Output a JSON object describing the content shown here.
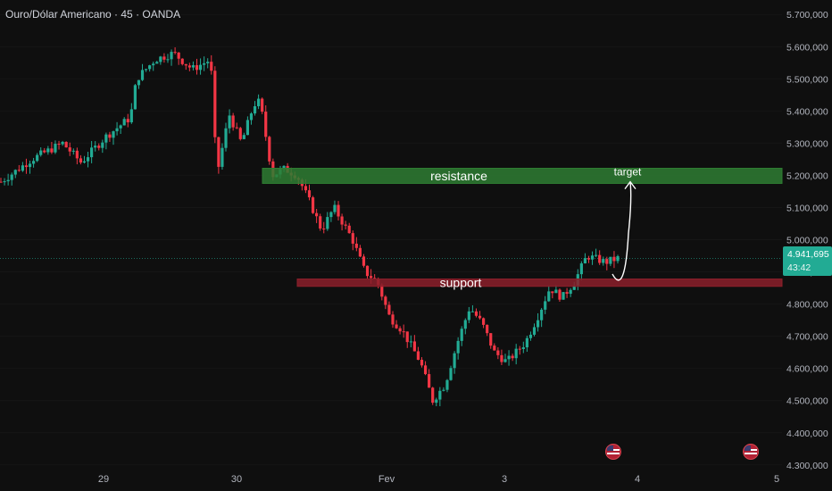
{
  "header": {
    "title": "Ouro/Dólar Americano · 45 · OANDA"
  },
  "last_price": {
    "value": "4.941,695",
    "countdown": "43:42"
  },
  "colors": {
    "background": "#0f0f0f",
    "up": "#22ab94",
    "down": "#f23645",
    "resistance_zone": "#2e7d32",
    "support_zone": "#8b1f2a",
    "annotation": "#ffffff"
  },
  "events": [
    {
      "icon": "us-flag-icon"
    },
    {
      "icon": "us-flag-icon"
    }
  ],
  "chart_data": {
    "type": "candlestick",
    "xlabel": "",
    "ylabel": "",
    "x_ticks": [
      "29",
      "30",
      "Fev",
      "3",
      "4",
      "5"
    ],
    "y_ticks": [
      "5.700,000",
      "5.600,000",
      "5.500,000",
      "5.400,000",
      "5.300,000",
      "5.200,000",
      "5.100,000",
      "5.000,000",
      "4.900,000",
      "4.800,000",
      "4.700,000",
      "4.600,000",
      "4.500,000",
      "4.400,000",
      "4.300,000"
    ],
    "ylim": [
      4280,
      5745
    ],
    "close_path": [
      [
        0,
        5180
      ],
      [
        5,
        5250
      ],
      [
        10,
        5300
      ],
      [
        13,
        5240
      ],
      [
        17,
        5320
      ],
      [
        21,
        5380
      ],
      [
        22,
        5500
      ],
      [
        25,
        5560
      ],
      [
        28,
        5580
      ],
      [
        31,
        5530
      ],
      [
        34,
        5560
      ],
      [
        35,
        5200
      ],
      [
        37,
        5390
      ],
      [
        39,
        5300
      ],
      [
        41,
        5420
      ],
      [
        42,
        5430
      ],
      [
        44,
        5200
      ],
      [
        46,
        5220
      ],
      [
        48,
        5200
      ],
      [
        50,
        5120
      ],
      [
        52,
        5030
      ],
      [
        54,
        5100
      ],
      [
        57,
        5000
      ],
      [
        59,
        4900
      ],
      [
        61,
        4870
      ],
      [
        63,
        4760
      ],
      [
        65,
        4720
      ],
      [
        68,
        4620
      ],
      [
        70,
        4500
      ],
      [
        72,
        4550
      ],
      [
        74,
        4680
      ],
      [
        76,
        4790
      ],
      [
        78,
        4740
      ],
      [
        80,
        4650
      ],
      [
        82,
        4620
      ],
      [
        85,
        4680
      ],
      [
        87,
        4760
      ],
      [
        89,
        4850
      ],
      [
        91,
        4820
      ],
      [
        93,
        4870
      ],
      [
        95,
        4950
      ],
      [
        98,
        4930
      ],
      [
        100,
        4942
      ]
    ],
    "zones": [
      {
        "label": "resistance",
        "from": 5175,
        "to": 5222
      },
      {
        "label": "support",
        "from": 4855,
        "to": 4878
      }
    ],
    "annotations": [
      {
        "label": "target",
        "from": 4860,
        "to": 5180
      }
    ],
    "last_price": 4941.695
  }
}
